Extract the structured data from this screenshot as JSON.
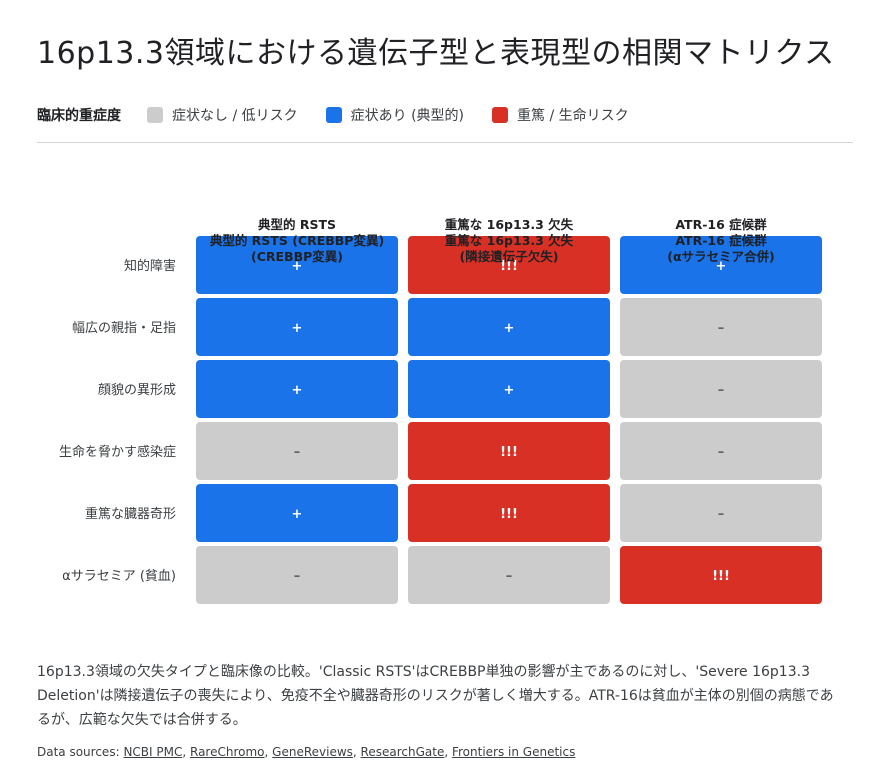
{
  "title": "16p13.3領域における遺伝子型と表現型の相関マトリクス",
  "legend": {
    "title": "臨床的重症度",
    "items": [
      {
        "label": "症状なし / 低リスク",
        "color": "#cccccc"
      },
      {
        "label": "症状あり (典型的)",
        "color": "#1a73e8"
      },
      {
        "label": "重篤 / 生命リスク",
        "color": "#d93025"
      }
    ]
  },
  "chart_data": {
    "type": "heatmap",
    "columns": [
      {
        "label": "典型的 RSTS",
        "sublabel": "典型的 RSTS (CREBBP変異)",
        "note": "(CREBBP変異)"
      },
      {
        "label": "重篤な 16p13.3 欠失",
        "sublabel": "重篤な 16p13.3 欠失",
        "note": "(隣接遺伝子欠失)"
      },
      {
        "label": "ATR-16 症候群",
        "sublabel": "ATR-16 症候群",
        "note": "(αサラセミア合併)"
      }
    ],
    "rows": [
      "知的障害",
      "幅広の親指・足指",
      "顔貌の異形成",
      "生命を脅かす感染症",
      "重篤な臓器奇形",
      "αサラセミア (貧血)"
    ],
    "levels": [
      [
        1,
        2,
        1
      ],
      [
        1,
        1,
        0
      ],
      [
        1,
        1,
        0
      ],
      [
        0,
        2,
        0
      ],
      [
        1,
        2,
        0
      ],
      [
        0,
        0,
        2
      ]
    ],
    "symbols": [
      [
        "+",
        "!!!",
        "+"
      ],
      [
        "+",
        "+",
        "–"
      ],
      [
        "+",
        "+",
        "–"
      ],
      [
        "–",
        "!!!",
        "–"
      ],
      [
        "+",
        "!!!",
        "–"
      ],
      [
        "–",
        "–",
        "!!!"
      ]
    ],
    "level_colors": [
      "#cccccc",
      "#1a73e8",
      "#d93025"
    ],
    "symbol_colors": [
      "#5f6368",
      "#ffffff",
      "#ffffff"
    ]
  },
  "caption": "16p13.3領域の欠失タイプと臨床像の比較。'Classic RSTS'はCREBBP単独の影響が主であるのに対し、'Severe 16p13.3 Deletion'は隣接遺伝子の喪失により、免疫不全や臓器奇形のリスクが著しく増大する。ATR-16は貧血が主体の別個の病態であるが、広範な欠失では合併する。",
  "sources": {
    "prefix": "Data sources: ",
    "links": [
      "NCBI PMC",
      "RareChromo",
      "GeneReviews",
      "ResearchGate",
      "Frontiers in Genetics"
    ]
  }
}
